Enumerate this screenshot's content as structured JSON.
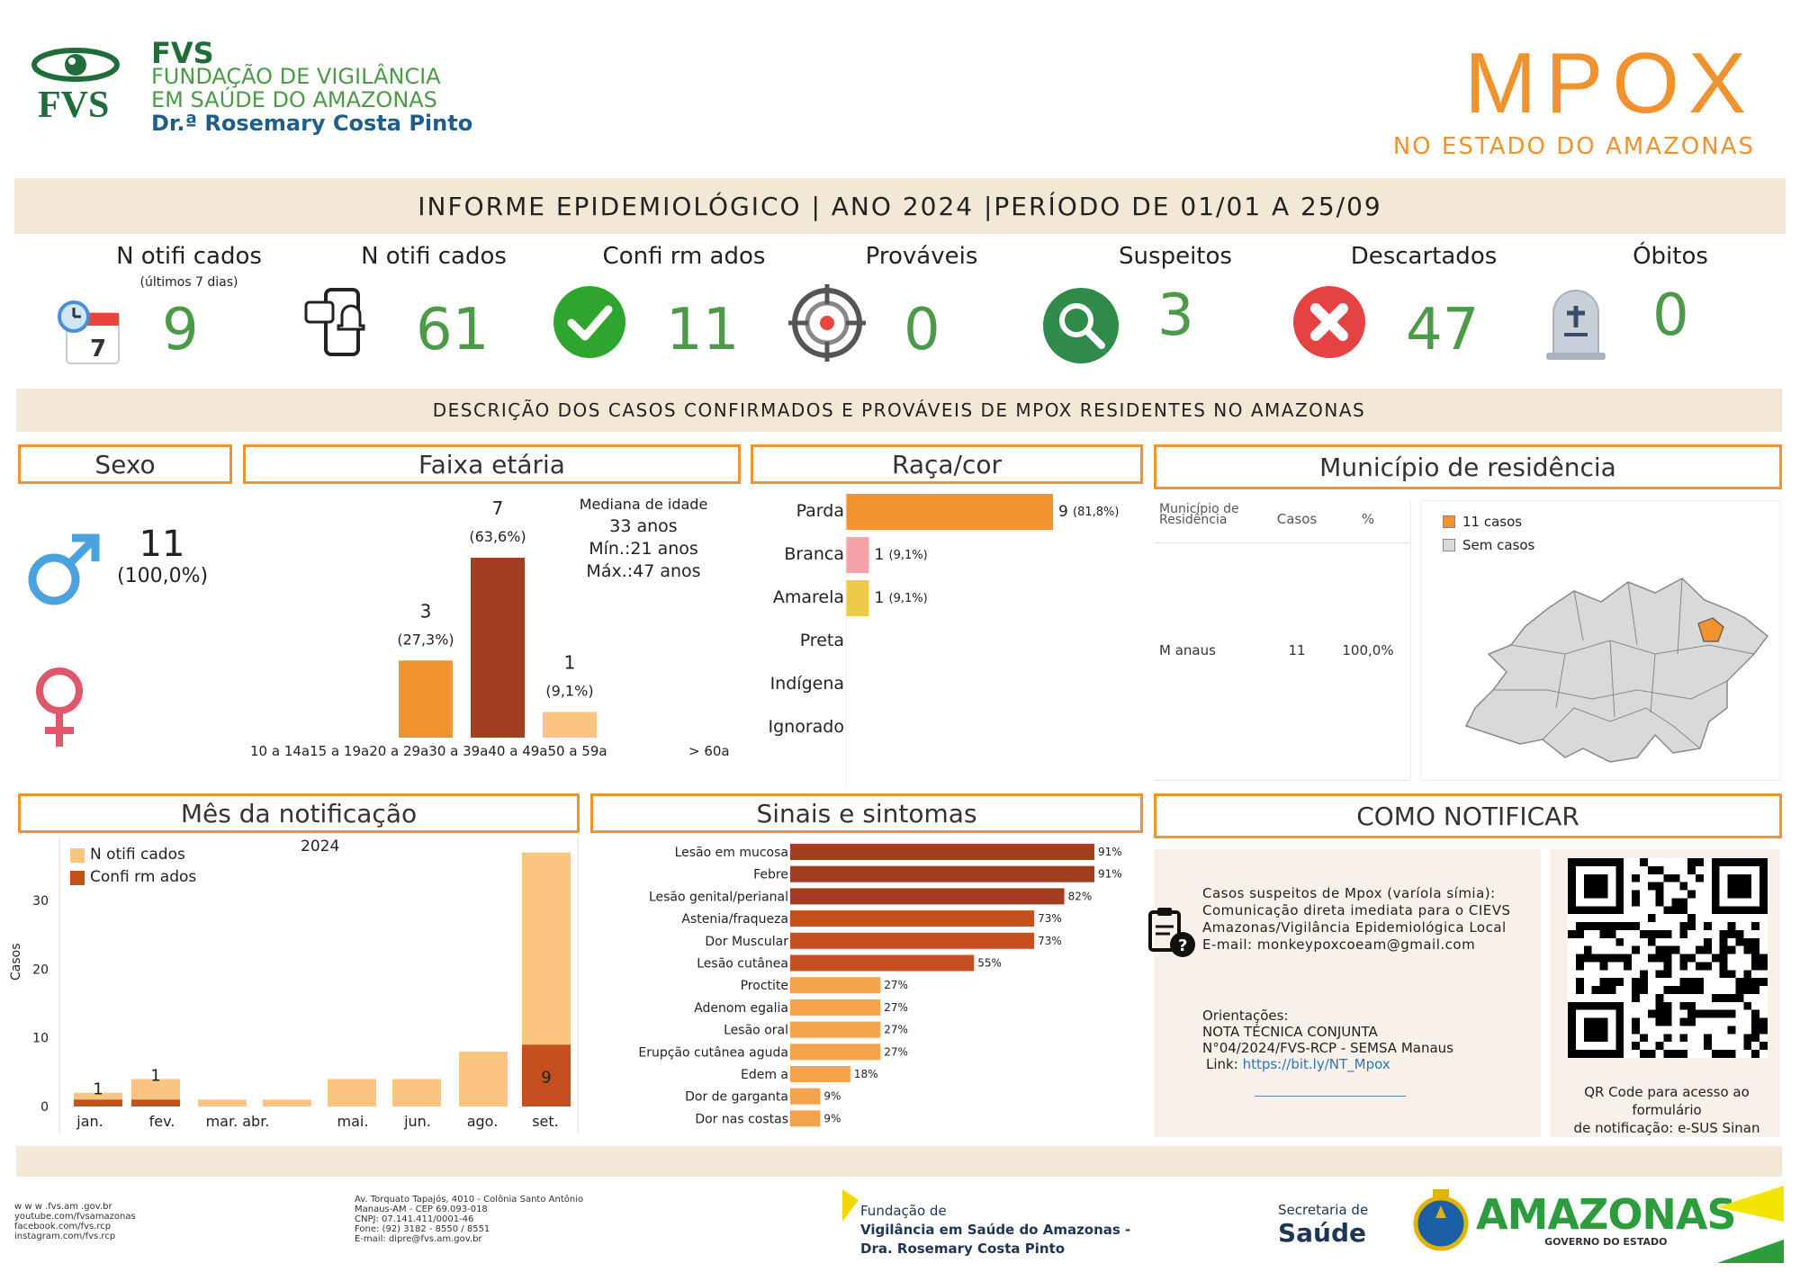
{
  "header": {
    "org_abbr": "FVS",
    "org_name_line1": "FUNDAÇÃO DE VIGILÂNCIA",
    "org_name_line2": "EM SAÚDE DO AMAZONAS",
    "org_name_line3": "Dr.ª Rosemary Costa Pinto",
    "title": "MPOX",
    "subtitle": "NO ESTADO DO AMAZONAS"
  },
  "report_band": "INFORME EPIDEMIOLÓGICO | ANO 2024 |PERÍODO DE 01/01 A 25/09",
  "stats": [
    {
      "label": "N otifi cados",
      "sublabel": "(últimos 7 dias)",
      "value": "9",
      "icon": "calendar-icon"
    },
    {
      "label": "N otifi cados",
      "sublabel": "",
      "value": "61",
      "icon": "phone-notification-icon"
    },
    {
      "label": "Confi rm ados",
      "sublabel": "",
      "value": "11",
      "icon": "check-icon"
    },
    {
      "label": "Prováveis",
      "sublabel": "",
      "value": "0",
      "icon": "target-icon"
    },
    {
      "label": "Suspeitos",
      "sublabel": "",
      "value": "3",
      "icon": "magnifier-icon"
    },
    {
      "label": "Descartados",
      "sublabel": "",
      "value": "47",
      "icon": "x-icon"
    },
    {
      "label": "Óbitos",
      "sublabel": "",
      "value": "0",
      "icon": "tombstone-icon"
    }
  ],
  "description_band": "DESCRIÇÃO DOS CASOS CONFIRMADOS E PROVÁVEIS DE MPOX RESIDENTES NO AMAZONAS",
  "sexo": {
    "title": "Sexo",
    "male_count": "11",
    "male_pct": "(100,0%)"
  },
  "faixa": {
    "title": "Faixa etária",
    "median_label": "Mediana de idade",
    "median_value": "33 anos",
    "min": "Mín.:21 anos",
    "max": "Máx.:47 anos",
    "axis_labels": "10 a 14a15 a 19a20 a 29a30 a 39a40 a 49a50 a 59a",
    "axis_last": "> 60a"
  },
  "raca": {
    "title": "Raça/cor"
  },
  "municipio": {
    "title": "Município de residência",
    "col_mun": "Município de Residência",
    "col_casos": "Casos",
    "col_pct": "%",
    "row_mun": "M anaus",
    "row_casos": "11",
    "row_pct": "100,0%",
    "legend_cases": "11 casos",
    "legend_none": "Sem casos",
    "color_cases": "#f0922e",
    "color_none": "#d9d9d9"
  },
  "mes": {
    "title": "Mês da notificação",
    "year": "2024",
    "legend_notified": "N otifi cados",
    "legend_confirmed": "Confi rm ados",
    "ylabel": "Casos"
  },
  "sinais": {
    "title": "Sinais e sintomas"
  },
  "notificar": {
    "title": "COMO NOTIFICAR",
    "line1": "Casos suspeitos de Mpox (varíola símia):",
    "line2": "Comunicação direta imediata para o CIEVS",
    "line3": "Amazonas/Vigilância Epidemiológica Local",
    "line4": "E-mail: monkeypoxcoeam@gmail.com",
    "orient_label": "Orientações:",
    "orient_1": "NOTA TÉCNICA CONJUNTA",
    "orient_2": "N°04/2024/FVS-RCP - SEMSA Manaus",
    "link_label": "Link:",
    "link_url": "https://bit.ly/NT_Mpox",
    "qr_caption_1": "QR Code para acesso ao formulário",
    "qr_caption_2": "de notificação: e-SUS Sinan"
  },
  "footer": {
    "web": [
      "w w w .fvs.am .gov.br",
      "youtube.com/fvsamazonas",
      "facebook.com/fvs.rcp",
      "instagram.com/fvs.rcp"
    ],
    "address": [
      "Av. Torquato Tapajós, 4010 - Colônia Santo Antônio",
      "Manaus-AM - CEP 69.093-018",
      "CNPJ: 07.141.411/0001-46",
      "Fone: (92) 3182 - 8550 / 8551",
      "E-mail: dipre@fvs.am.gov.br"
    ],
    "fvs_line1": "Fundação de",
    "fvs_line2": "Vigilância em Saúde do Amazonas -",
    "fvs_line3": "Dra. Rosemary Costa Pinto",
    "sec_line1": "Secretaria de",
    "sec_line2": "Saúde",
    "gov_name": "AMAZONAS",
    "gov_sub": "GOVERNO DO ESTADO"
  },
  "chart_data": [
    {
      "type": "bar",
      "title": "Faixa etária",
      "categories": [
        "10 a 14a",
        "15 a 19a",
        "20 a 29a",
        "30 a 39a",
        "40 a 49a",
        "50 a 59a",
        "> 60a"
      ],
      "values": [
        0,
        0,
        3,
        7,
        1,
        0,
        0
      ],
      "labels": [
        "",
        "",
        "(27,3%)",
        "(63,6%)",
        "(9,1%)",
        "",
        ""
      ]
    },
    {
      "type": "bar",
      "orientation": "horizontal",
      "title": "Raça/cor",
      "categories": [
        "Parda",
        "Branca",
        "Amarela",
        "Preta",
        "Indígena",
        "Ignorado"
      ],
      "values": [
        9,
        1,
        1,
        0,
        0,
        0
      ],
      "labels": [
        "(81,8%)",
        "(9,1%)",
        "(9,1%)",
        "",
        "",
        ""
      ],
      "colors": [
        "#f0922e",
        "#f7a1a8",
        "#edc948",
        "",
        "",
        ""
      ]
    },
    {
      "type": "bar",
      "title": "Mês da notificação",
      "categories": [
        "jan.",
        "fev.",
        "mar.",
        "abr.",
        "mai.",
        "jun.",
        "ago.",
        "set."
      ],
      "series": [
        {
          "name": "N otifi cados",
          "values": [
            2,
            4,
            1,
            1,
            4,
            4,
            8,
            37
          ]
        },
        {
          "name": "Confi rm ados",
          "values": [
            1,
            1,
            0,
            0,
            0,
            0,
            0,
            9
          ]
        }
      ],
      "ylabel": "Casos",
      "yticks": [
        0,
        10,
        20,
        30
      ],
      "ylim": [
        0,
        38
      ],
      "labels_confirmed": [
        "1",
        "1",
        "",
        "",
        "",
        "",
        "",
        "9"
      ]
    },
    {
      "type": "bar",
      "orientation": "horizontal",
      "title": "Sinais e sintomas",
      "categories": [
        "Lesão em mucosa",
        "Febre",
        "Lesão genital/perianal",
        "Astenia/fraqueza",
        "Dor Muscular",
        "Lesão cutânea",
        "Proctite",
        "Adenom egalia",
        "Lesão oral",
        "Erupção cutânea aguda",
        "Edem a",
        "Dor de garganta",
        "Dor nas costas"
      ],
      "values": [
        91,
        91,
        82,
        73,
        73,
        55,
        27,
        27,
        27,
        27,
        18,
        9,
        9
      ],
      "value_labels": [
        "91%",
        "91%",
        "82%",
        "73%",
        "73%",
        "55%",
        "27%",
        "27%",
        "27%",
        "27%",
        "18%",
        "9%",
        "9%"
      ]
    }
  ]
}
